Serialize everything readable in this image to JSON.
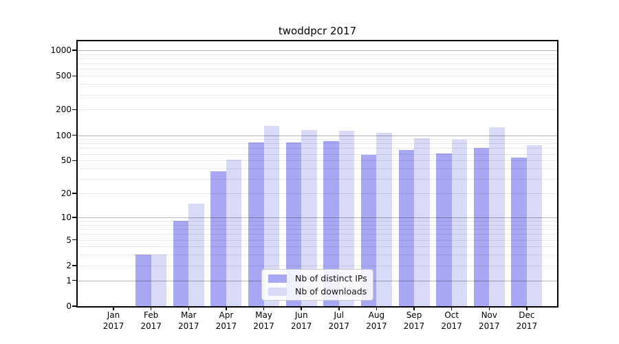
{
  "chart_data": {
    "type": "bar",
    "title": "twoddpcr 2017",
    "categories": [
      "Jan 2017",
      "Feb 2017",
      "Mar 2017",
      "Apr 2017",
      "May 2017",
      "Jun 2017",
      "Jul 2017",
      "Aug 2017",
      "Sep 2017",
      "Oct 2017",
      "Nov 2017",
      "Dec 2017"
    ],
    "series": [
      {
        "name": "Nb of distinct IPs",
        "color": "#a7a7f4",
        "values": [
          0,
          3,
          9,
          37,
          82,
          82,
          85,
          58,
          67,
          61,
          71,
          54
        ]
      },
      {
        "name": "Nb of downloads",
        "color": "#d9d9f8",
        "values": [
          0,
          3,
          15,
          51,
          130,
          115,
          113,
          107,
          92,
          88,
          125,
          76
        ]
      }
    ],
    "yscale": "log1p",
    "yticks": [
      0,
      1,
      2,
      5,
      10,
      20,
      50,
      100,
      200,
      500,
      1000
    ],
    "ylim": [
      0,
      1270
    ],
    "grid": "on",
    "legend_position": "lower center"
  },
  "colors": {
    "major_grid": "rgba(0,0,0,0.30)",
    "minor_grid": "rgba(0,0,0,0.085)",
    "spine": "#000000",
    "background": "#ffffff"
  }
}
